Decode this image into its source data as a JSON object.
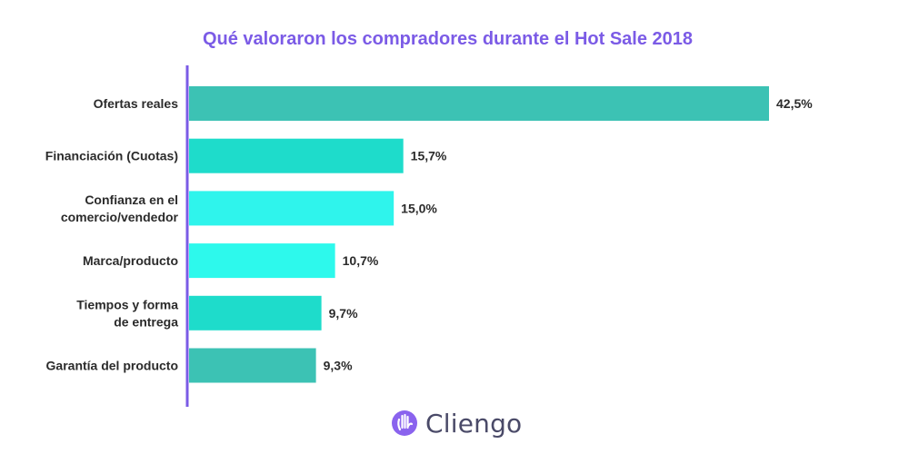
{
  "chart_data": {
    "type": "bar",
    "orientation": "horizontal",
    "title": "Qué valoraron los compradores durante el Hot Sale 2018",
    "xlabel": "",
    "ylabel": "",
    "xlim": [
      0,
      42.5
    ],
    "grid": false,
    "categories": [
      [
        "Ofertas reales"
      ],
      [
        "Financiación (Cuotas)"
      ],
      [
        "Confianza en el",
        "comercio/vendedor"
      ],
      [
        "Marca/producto"
      ],
      [
        "Tiempos y forma",
        "de entrega"
      ],
      [
        "Garantía del producto"
      ]
    ],
    "values": [
      42.5,
      15.7,
      15.0,
      10.7,
      9.7,
      9.3
    ],
    "value_labels": [
      "42,5%",
      "15,7%",
      "15,0%",
      "10,7%",
      "9,7%",
      "9,3%"
    ],
    "bar_colors": [
      "#3cc2b4",
      "#1edccb",
      "#2ff4ec",
      "#2df9ec",
      "#1edccb",
      "#3cc2b4"
    ]
  },
  "colors": {
    "title": "#7b5be6",
    "axis": "#7b5be6",
    "label": "#2b2b2b",
    "brand_icon": "#8a63ee",
    "brand_text": "#4a4a68"
  },
  "brand": {
    "icon": "hand-logo-icon",
    "name": "Cliengo"
  }
}
